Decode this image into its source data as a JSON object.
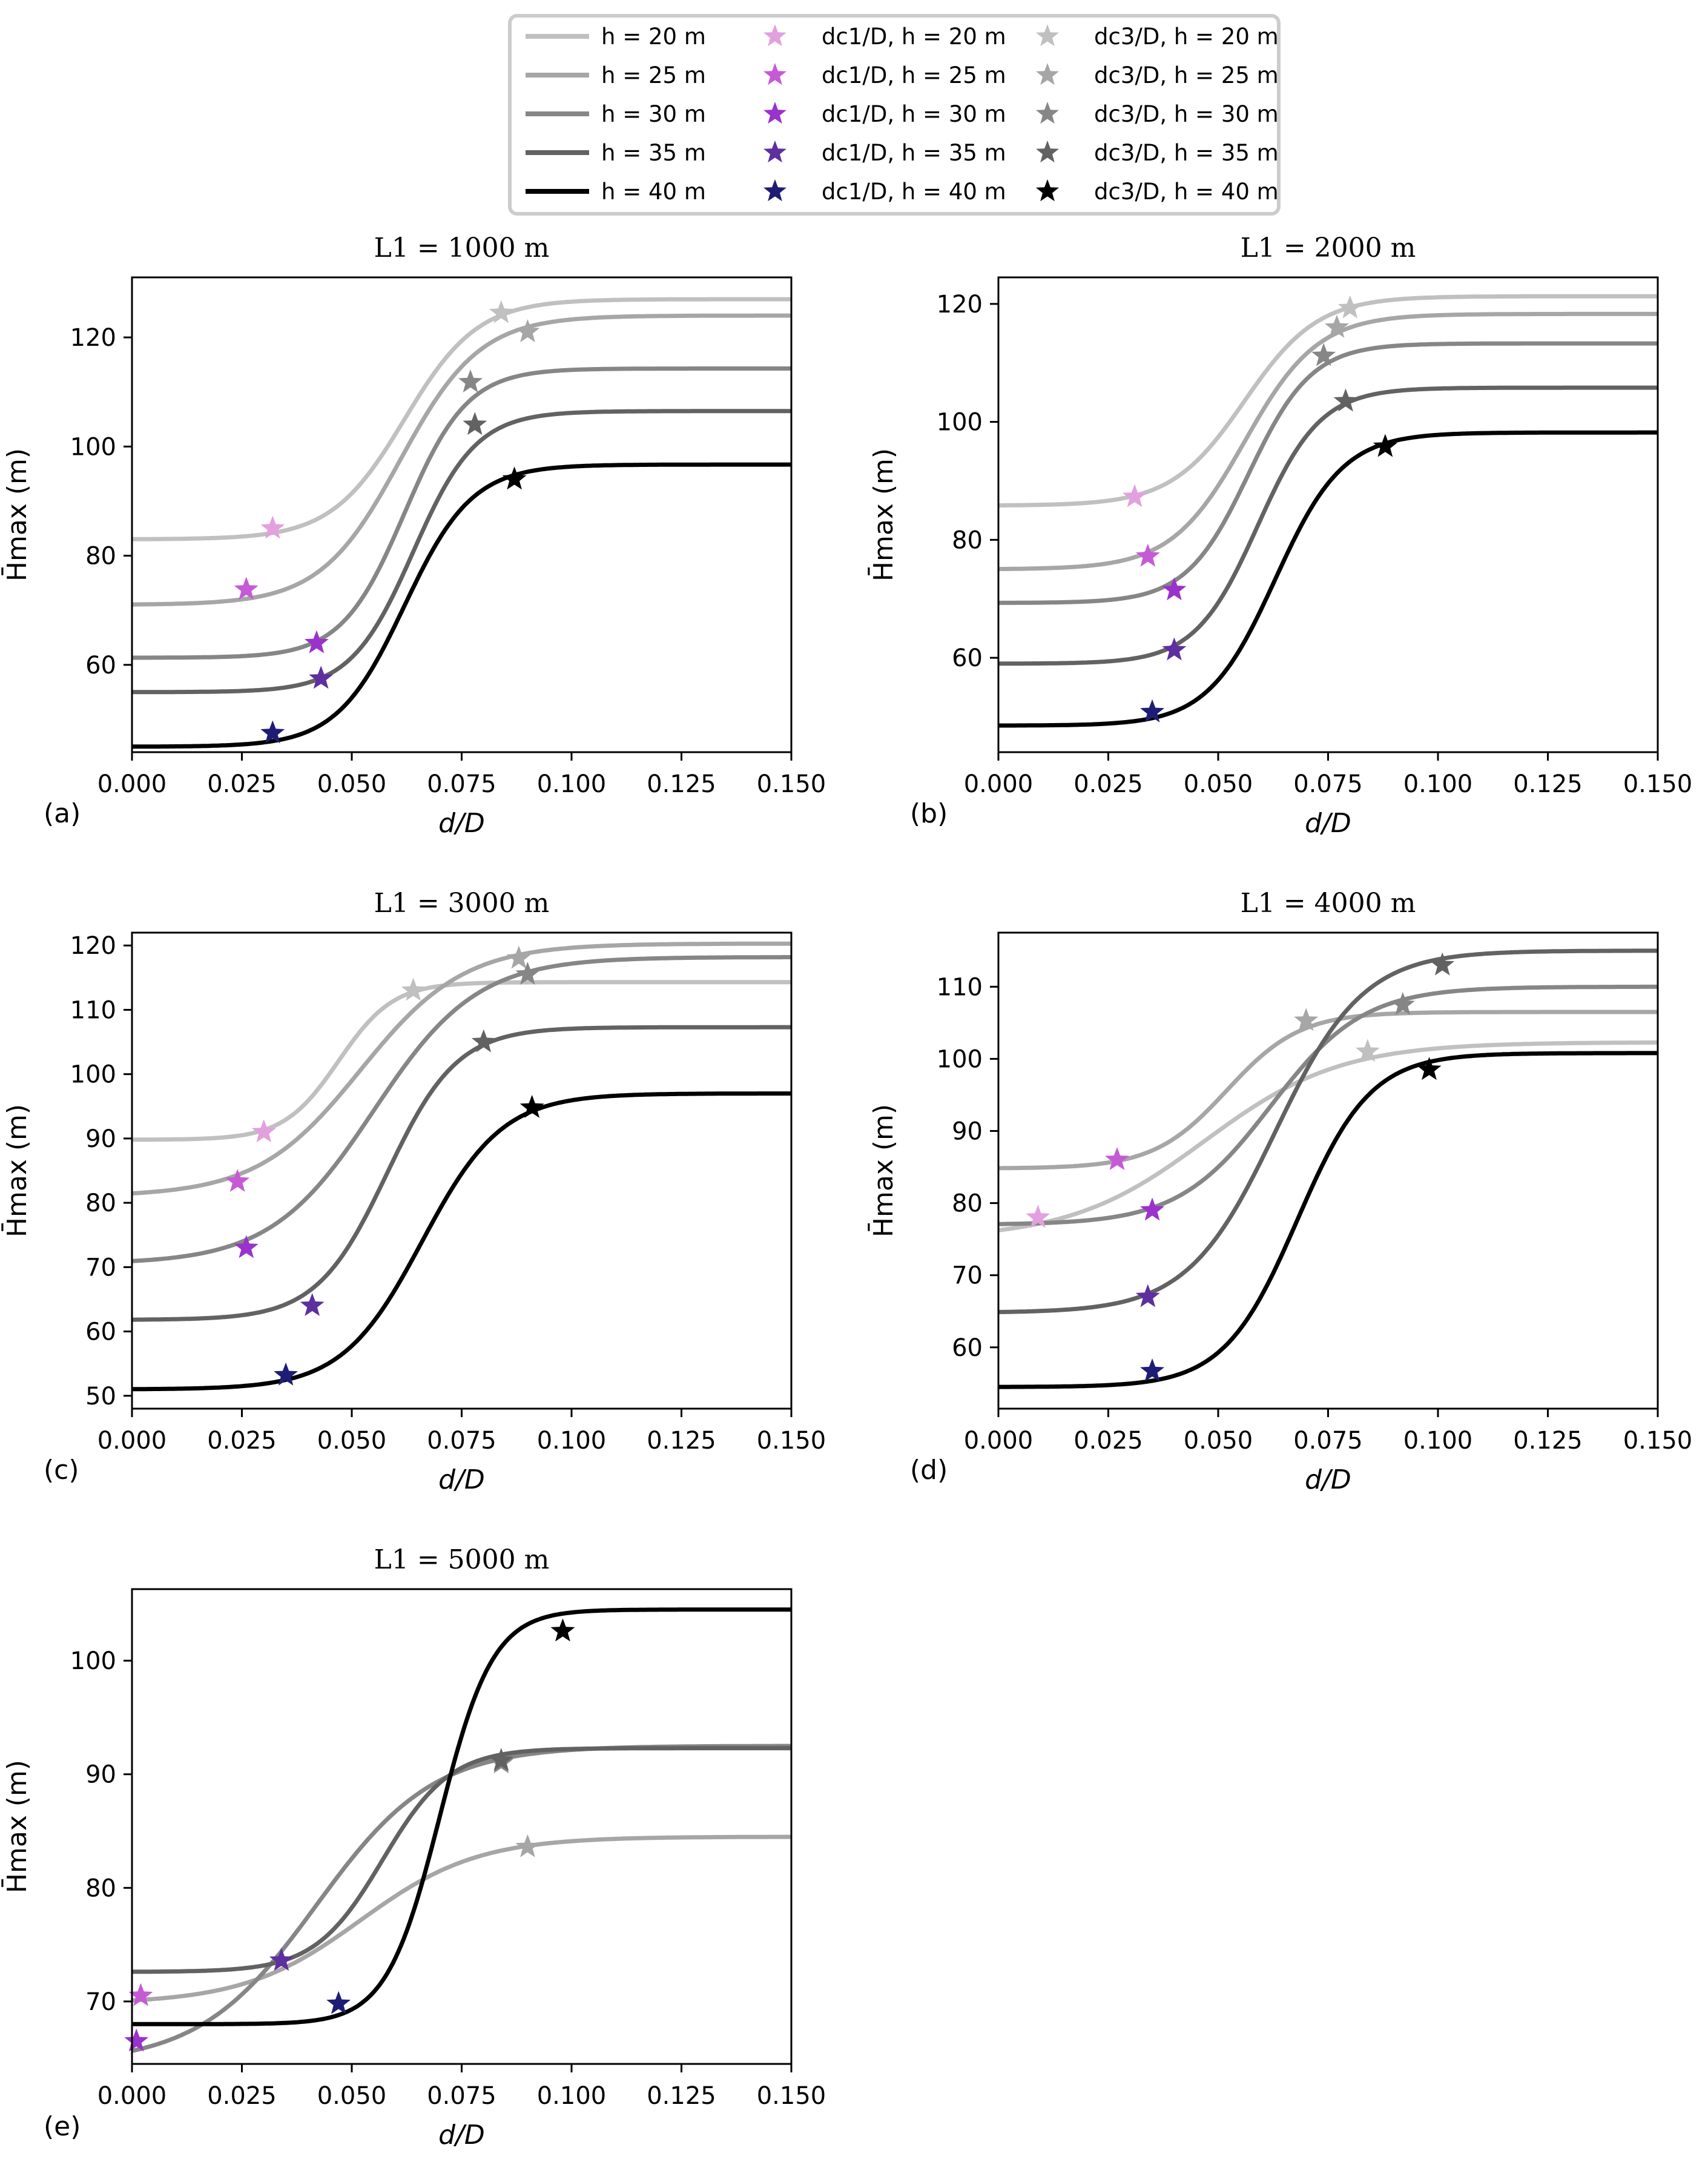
{
  "legend": {
    "entries": [
      {
        "kind": "line",
        "label": "h = 20 m",
        "color": "#c0c0c0"
      },
      {
        "kind": "line",
        "label": "h = 25 m",
        "color": "#a6a6a6"
      },
      {
        "kind": "line",
        "label": "h = 30 m",
        "color": "#868686"
      },
      {
        "kind": "line",
        "label": "h = 35 m",
        "color": "#626262"
      },
      {
        "kind": "line",
        "label": "h = 40 m",
        "color": "#000000"
      },
      {
        "kind": "star",
        "label": "dc1/D, h = 20 m",
        "color": "#e2a0de"
      },
      {
        "kind": "star",
        "label": "dc1/D, h = 25 m",
        "color": "#c65ad6"
      },
      {
        "kind": "star",
        "label": "dc1/D, h = 30 m",
        "color": "#9a32cc"
      },
      {
        "kind": "star",
        "label": "dc1/D, h = 35 m",
        "color": "#5e2f9e"
      },
      {
        "kind": "star",
        "label": "dc1/D, h = 40 m",
        "color": "#1d1d75"
      },
      {
        "kind": "star",
        "label": "dc3/D, h = 20 m",
        "color": "#c0c0c0"
      },
      {
        "kind": "star",
        "label": "dc3/D, h = 25 m",
        "color": "#a6a6a6"
      },
      {
        "kind": "star",
        "label": "dc3/D, h = 30 m",
        "color": "#868686"
      },
      {
        "kind": "star",
        "label": "dc3/D, h = 35 m",
        "color": "#626262"
      },
      {
        "kind": "star",
        "label": "dc3/D, h = 40 m",
        "color": "#000000"
      }
    ]
  },
  "chart_data": [
    {
      "type": "line",
      "panel": "(a)",
      "title": "L1 = 1000 m",
      "xlabel": "d/D",
      "ylabel": "H̄max (m)",
      "xlim": [
        0.0,
        0.15
      ],
      "ylim": [
        44,
        131
      ],
      "xticks": [
        "0.000",
        "0.025",
        "0.050",
        "0.075",
        "0.100",
        "0.125",
        "0.150"
      ],
      "yticks": [
        60,
        80,
        100,
        120
      ],
      "series": [
        {
          "name": "h = 20 m",
          "color": "#c0c0c0",
          "y_low": 83,
          "y_high": 127,
          "center": 0.062,
          "steepness": 120,
          "dc1": [
            0.032,
            85
          ],
          "dc3": [
            0.084,
            124.5
          ]
        },
        {
          "name": "h = 25 m",
          "color": "#a6a6a6",
          "y_low": 71,
          "y_high": 124,
          "center": 0.061,
          "steepness": 110,
          "dc1": [
            0.026,
            73.8
          ],
          "dc3": [
            0.09,
            121
          ]
        },
        {
          "name": "h = 30 m",
          "color": "#868686",
          "y_low": 61.3,
          "y_high": 114.3,
          "center": 0.062,
          "steepness": 140,
          "dc1": [
            0.042,
            64
          ],
          "dc3": [
            0.077,
            111.8
          ]
        },
        {
          "name": "h = 35 m",
          "color": "#626262",
          "y_low": 55,
          "y_high": 106.5,
          "center": 0.064,
          "steepness": 140,
          "dc1": [
            0.043,
            57.5
          ],
          "dc3": [
            0.078,
            104
          ]
        },
        {
          "name": "h = 40 m",
          "color": "#000000",
          "y_low": 45,
          "y_high": 96.7,
          "center": 0.062,
          "steepness": 130,
          "dc1": [
            0.032,
            47.5
          ],
          "dc3": [
            0.087,
            94
          ]
        }
      ]
    },
    {
      "type": "line",
      "panel": "(b)",
      "title": "L1 = 2000 m",
      "xlabel": "d/D",
      "ylabel": "H̄max (m)",
      "xlim": [
        0.0,
        0.15
      ],
      "ylim": [
        44,
        124.5
      ],
      "xticks": [
        "0.000",
        "0.025",
        "0.050",
        "0.075",
        "0.100",
        "0.125",
        "0.150"
      ],
      "yticks": [
        60,
        80,
        100,
        120
      ],
      "series": [
        {
          "name": "h = 20 m",
          "color": "#c0c0c0",
          "y_low": 85.8,
          "y_high": 121.3,
          "center": 0.056,
          "steepness": 120,
          "dc1": [
            0.031,
            87.3
          ],
          "dc3": [
            0.08,
            119.3
          ]
        },
        {
          "name": "h = 25 m",
          "color": "#a6a6a6",
          "y_low": 75,
          "y_high": 118.3,
          "center": 0.056,
          "steepness": 120,
          "dc1": [
            0.034,
            77.2
          ],
          "dc3": [
            0.077,
            116
          ]
        },
        {
          "name": "h = 30 m",
          "color": "#868686",
          "y_low": 69.3,
          "y_high": 113.3,
          "center": 0.057,
          "steepness": 140,
          "dc1": [
            0.04,
            71.5
          ],
          "dc3": [
            0.074,
            111.2
          ]
        },
        {
          "name": "h = 35 m",
          "color": "#626262",
          "y_low": 59,
          "y_high": 105.8,
          "center": 0.059,
          "steepness": 140,
          "dc1": [
            0.04,
            61.3
          ],
          "dc3": [
            0.079,
            103.5
          ]
        },
        {
          "name": "h = 40 m",
          "color": "#000000",
          "y_low": 48.5,
          "y_high": 98.2,
          "center": 0.063,
          "steepness": 130,
          "dc1": [
            0.035,
            50.8
          ],
          "dc3": [
            0.088,
            95.8
          ]
        }
      ]
    },
    {
      "type": "line",
      "panel": "(c)",
      "title": "L1 = 3000 m",
      "xlabel": "d/D",
      "ylabel": "H̄max (m)",
      "xlim": [
        0.0,
        0.15
      ],
      "ylim": [
        48,
        122
      ],
      "xticks": [
        "0.000",
        "0.025",
        "0.050",
        "0.075",
        "0.100",
        "0.125",
        "0.150"
      ],
      "yticks": [
        50,
        60,
        70,
        80,
        90,
        100,
        110,
        120
      ],
      "series": [
        {
          "name": "h = 20 m",
          "color": "#c0c0c0",
          "y_low": 89.8,
          "y_high": 114.3,
          "center": 0.047,
          "steepness": 160,
          "dc1": [
            0.03,
            91
          ],
          "dc3": [
            0.064,
            113
          ]
        },
        {
          "name": "h = 25 m",
          "color": "#a6a6a6",
          "y_low": 81,
          "y_high": 120.3,
          "center": 0.052,
          "steepness": 85,
          "dc1": [
            0.024,
            83.3
          ],
          "dc3": [
            0.088,
            118
          ]
        },
        {
          "name": "h = 30 m",
          "color": "#868686",
          "y_low": 70.5,
          "y_high": 118.2,
          "center": 0.055,
          "steepness": 85,
          "dc1": [
            0.026,
            73
          ],
          "dc3": [
            0.09,
            115.5
          ]
        },
        {
          "name": "h = 35 m",
          "color": "#626262",
          "y_low": 61.8,
          "y_high": 107.3,
          "center": 0.058,
          "steepness": 125,
          "dc1": [
            0.041,
            64
          ],
          "dc3": [
            0.08,
            105
          ]
        },
        {
          "name": "h = 40 m",
          "color": "#000000",
          "y_low": 51,
          "y_high": 97,
          "center": 0.066,
          "steepness": 110,
          "dc1": [
            0.035,
            53.2
          ],
          "dc3": [
            0.091,
            94.8
          ]
        }
      ]
    },
    {
      "type": "line",
      "panel": "(d)",
      "title": "L1 = 4000 m",
      "xlabel": "d/D",
      "ylabel": "H̄max (m)",
      "xlim": [
        0.0,
        0.15
      ],
      "ylim": [
        51.5,
        117.5
      ],
      "xticks": [
        "0.000",
        "0.025",
        "0.050",
        "0.075",
        "0.100",
        "0.125",
        "0.150"
      ],
      "yticks": [
        60,
        70,
        80,
        90,
        100,
        110
      ],
      "series": [
        {
          "name": "h = 20 m",
          "color": "#c0c0c0",
          "y_low": 75,
          "y_high": 102.3,
          "center": 0.047,
          "steepness": 65,
          "dc1": [
            0.009,
            78
          ],
          "dc3": [
            0.084,
            101
          ]
        },
        {
          "name": "h = 25 m",
          "color": "#a6a6a6",
          "y_low": 84.8,
          "y_high": 106.5,
          "center": 0.052,
          "steepness": 120,
          "dc1": [
            0.027,
            86
          ],
          "dc3": [
            0.07,
            105.3
          ]
        },
        {
          "name": "h = 30 m",
          "color": "#868686",
          "y_low": 77,
          "y_high": 110,
          "center": 0.062,
          "steepness": 95,
          "dc1": [
            0.035,
            79
          ],
          "dc3": [
            0.092,
            107.5
          ]
        },
        {
          "name": "h = 35 m",
          "color": "#626262",
          "y_low": 64.8,
          "y_high": 115,
          "center": 0.063,
          "steepness": 100,
          "dc1": [
            0.034,
            67
          ],
          "dc3": [
            0.101,
            113
          ]
        },
        {
          "name": "h = 40 m",
          "color": "#000000",
          "y_low": 54.5,
          "y_high": 100.8,
          "center": 0.068,
          "steepness": 120,
          "dc1": [
            0.035,
            56.7
          ],
          "dc3": [
            0.098,
            98.5
          ]
        }
      ]
    },
    {
      "type": "line",
      "panel": "(e)",
      "title": "L1 = 5000 m",
      "xlabel": "d/D",
      "ylabel": "H̄max (m)",
      "xlim": [
        0.0,
        0.15
      ],
      "ylim": [
        64.5,
        106.3
      ],
      "xticks": [
        "0.000",
        "0.025",
        "0.050",
        "0.075",
        "0.100",
        "0.125",
        "0.150"
      ],
      "yticks": [
        70,
        80,
        90,
        100
      ],
      "series": [
        {
          "name": "h = 25 m",
          "color": "#a6a6a6",
          "y_low": 69.8,
          "y_high": 84.5,
          "center": 0.052,
          "steepness": 75,
          "dc1": [
            0.002,
            70.5
          ],
          "dc3": [
            0.09,
            83.6
          ]
        },
        {
          "name": "h = 30 m",
          "color": "#868686",
          "y_low": 64.5,
          "y_high": 92.5,
          "center": 0.042,
          "steepness": 75,
          "dc1": [
            0.001,
            66.5
          ],
          "dc3": [
            0.084,
            91
          ]
        },
        {
          "name": "h = 35 m",
          "color": "#626262",
          "y_low": 72.6,
          "y_high": 92.3,
          "center": 0.057,
          "steepness": 130,
          "dc1": [
            0.034,
            73.6
          ],
          "dc3": [
            0.084,
            91.2
          ]
        },
        {
          "name": "h = 40 m",
          "color": "#000000",
          "y_low": 68,
          "y_high": 104.5,
          "center": 0.07,
          "steepness": 165,
          "dc1": [
            0.047,
            69.8
          ],
          "dc3": [
            0.098,
            102.6
          ]
        }
      ]
    }
  ]
}
